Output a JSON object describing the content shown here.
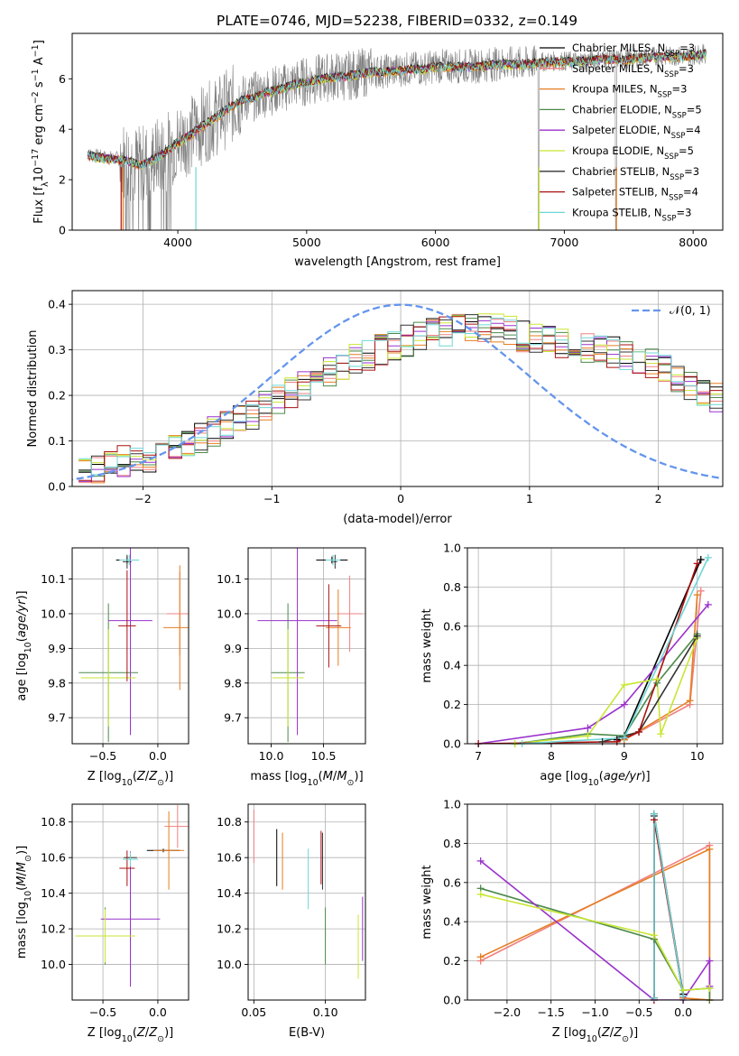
{
  "figure": {
    "title": "PLATE=0746, MJD=52238, FIBERID=0332, z=0.149"
  },
  "colors": {
    "Chabrier MILES": "#000000",
    "Salpeter MILES": "#f08080",
    "Kroupa MILES": "#e67e22",
    "Chabrier ELODIE": "#4c8a4c",
    "Salpeter ELODIE": "#9932cc",
    "Kroupa ELODIE": "#c8e632",
    "Chabrier STELIB": "#333333",
    "Salpeter STELIB": "#aa1111",
    "Kroupa STELIB": "#6fd6d6",
    "data": "#808080",
    "normal": "#6495ed",
    "grid": "#b0b0b0"
  },
  "chart_data": [
    {
      "id": "spectrum",
      "type": "line",
      "xlabel": "wavelength [Angstrom, rest frame]",
      "ylabel": "Flux [f_λ 10^-17 erg cm^-2 s^-1 A^-1]",
      "xlim": [
        3180,
        8230
      ],
      "ylim": [
        0,
        7.8
      ],
      "xticks": [
        4000,
        5000,
        6000,
        7000,
        8000
      ],
      "yticks": [
        0,
        2,
        4,
        6
      ],
      "grid": false,
      "legend_placement": "top-right",
      "legend": [
        {
          "base": "Chabrier MILES, N",
          "sub": "SSP",
          "tail": "=3"
        },
        {
          "base": "Salpeter MILES, N",
          "sub": "SSP",
          "tail": "=3"
        },
        {
          "base": "Kroupa MILES, N",
          "sub": "SSP",
          "tail": "=3"
        },
        {
          "base": "Chabrier ELODIE, N",
          "sub": "SSP",
          "tail": "=5"
        },
        {
          "base": "Salpeter ELODIE, N",
          "sub": "SSP",
          "tail": "=4"
        },
        {
          "base": "Kroupa ELODIE, N",
          "sub": "SSP",
          "tail": "=5"
        },
        {
          "base": "Chabrier STELIB, N",
          "sub": "SSP",
          "tail": "=3"
        },
        {
          "base": "Salpeter STELIB, N",
          "sub": "SSP",
          "tail": "=4"
        },
        {
          "base": "Kroupa STELIB, N",
          "sub": "SSP",
          "tail": "=3"
        }
      ],
      "continuum": {
        "x": [
          3300,
          3400,
          3500,
          3600,
          3700,
          3800,
          3900,
          4000,
          4100,
          4200,
          4300,
          4400,
          4500,
          4600,
          4700,
          4800,
          4900,
          5000,
          5100,
          5200,
          5300,
          5400,
          5500,
          5600,
          5700,
          5800,
          5900,
          6000,
          6100,
          6200,
          6300,
          6400,
          6500,
          6600,
          6700,
          6800,
          6900,
          7000,
          7100,
          7200,
          7300,
          7400,
          7500,
          7600,
          7700,
          7800,
          7900,
          8000,
          8100
        ],
        "y": [
          3.0,
          2.9,
          2.85,
          2.8,
          2.6,
          2.8,
          3.1,
          3.5,
          3.8,
          4.2,
          4.5,
          4.9,
          5.2,
          5.3,
          5.5,
          5.6,
          5.8,
          5.9,
          6.0,
          6.1,
          6.1,
          6.2,
          6.3,
          6.3,
          6.35,
          6.4,
          6.4,
          6.5,
          6.5,
          6.5,
          6.5,
          6.55,
          6.6,
          6.6,
          6.6,
          6.65,
          6.7,
          6.7,
          6.7,
          6.75,
          6.8,
          6.8,
          6.8,
          6.85,
          6.9,
          6.9,
          6.9,
          6.95,
          7.0
        ]
      }
    },
    {
      "id": "residuals",
      "type": "histogram",
      "xlabel": "(data-model)/error",
      "ylabel": "Normed distribution",
      "xlim": [
        -2.55,
        2.5
      ],
      "ylim": [
        0,
        0.43
      ],
      "xticks": [
        -2,
        -1,
        0,
        1,
        2
      ],
      "yticks": [
        0.0,
        0.1,
        0.2,
        0.3,
        0.4
      ],
      "grid": true,
      "legend_placement": "top-right",
      "legend_label": "𝒩(0, 1)",
      "bin_start": -2.5,
      "bin_width": 0.1,
      "base_values": [
        0.035,
        0.04,
        0.05,
        0.055,
        0.06,
        0.065,
        0.075,
        0.085,
        0.095,
        0.105,
        0.12,
        0.13,
        0.145,
        0.16,
        0.175,
        0.19,
        0.205,
        0.22,
        0.235,
        0.25,
        0.265,
        0.28,
        0.29,
        0.3,
        0.31,
        0.32,
        0.33,
        0.335,
        0.34,
        0.345,
        0.35,
        0.35,
        0.345,
        0.34,
        0.33,
        0.325,
        0.32,
        0.315,
        0.31,
        0.305,
        0.3,
        0.295,
        0.29,
        0.28,
        0.27,
        0.255,
        0.24,
        0.225,
        0.21,
        0.195,
        0.18,
        0.165,
        0.15,
        0.135,
        0.12,
        0.11,
        0.1,
        0.09,
        0.08,
        0.075,
        0.07,
        0.065,
        0.06,
        0.055,
        0.05,
        0.045,
        0.04,
        0.035,
        0.03,
        0.03
      ]
    },
    {
      "id": "age_vs_Z",
      "type": "errorbar",
      "xlabel": "Z [log10(Z/Z⊙)]",
      "ylabel": "age [log10(age/yr)]",
      "xlim": [
        -0.78,
        0.28
      ],
      "ylim": [
        9.625,
        10.19
      ],
      "xticks": [
        -0.5,
        0.0
      ],
      "yticks": [
        9.7,
        9.8,
        9.9,
        10.0,
        10.1
      ],
      "grid": true,
      "points": [
        {
          "model": "Chabrier MILES",
          "x": -0.28,
          "xerr": 0.1,
          "y": 10.155,
          "yerr": 0.01
        },
        {
          "model": "Salpeter MILES",
          "x": 0.2,
          "xerr": 0.12,
          "y": 10.0,
          "yerr": 0.12
        },
        {
          "model": "Kroupa MILES",
          "x": 0.2,
          "xerr": 0.15,
          "y": 9.96,
          "yerr": 0.18
        },
        {
          "model": "Chabrier ELODIE",
          "x": -0.45,
          "xerr": 0.27,
          "y": 9.83,
          "yerr": 0.2
        },
        {
          "model": "Salpeter ELODIE",
          "x": -0.25,
          "xerr": 0.2,
          "y": 9.98,
          "yerr": 0.33
        },
        {
          "model": "Kroupa ELODIE",
          "x": -0.45,
          "xerr": 0.25,
          "y": 9.815,
          "yerr": 0.14
        },
        {
          "model": "Chabrier STELIB",
          "x": -0.28,
          "xerr": 0.04,
          "y": 10.15,
          "yerr": 0.02
        },
        {
          "model": "Salpeter STELIB",
          "x": -0.28,
          "xerr": 0.08,
          "y": 9.965,
          "yerr": 0.16
        },
        {
          "model": "Kroupa STELIB",
          "x": -0.26,
          "xerr": 0.09,
          "y": 10.155,
          "yerr": 0.015
        }
      ]
    },
    {
      "id": "age_vs_mass",
      "type": "errorbar",
      "xlabel": "mass [log10(M/M⊙)]",
      "ylabel": "",
      "xlim": [
        9.78,
        10.9
      ],
      "ylim": [
        9.625,
        10.19
      ],
      "xticks": [
        10.0,
        10.5
      ],
      "yticks": [
        9.7,
        9.8,
        9.9,
        10.0,
        10.1
      ],
      "grid": true,
      "points": [
        {
          "model": "Chabrier MILES",
          "x": 10.58,
          "xerr": 0.15,
          "y": 10.155,
          "yerr": 0.01
        },
        {
          "model": "Salpeter MILES",
          "x": 10.75,
          "xerr": 0.12,
          "y": 10.0,
          "yerr": 0.11
        },
        {
          "model": "Kroupa MILES",
          "x": 10.64,
          "xerr": 0.12,
          "y": 9.96,
          "yerr": 0.11
        },
        {
          "model": "Chabrier ELODIE",
          "x": 10.16,
          "xerr": 0.16,
          "y": 9.83,
          "yerr": 0.2
        },
        {
          "model": "Salpeter ELODIE",
          "x": 10.25,
          "xerr": 0.38,
          "y": 9.98,
          "yerr": 0.33
        },
        {
          "model": "Kroupa ELODIE",
          "x": 10.16,
          "xerr": 0.15,
          "y": 9.815,
          "yerr": 0.14
        },
        {
          "model": "Chabrier STELIB",
          "x": 10.61,
          "xerr": 0.02,
          "y": 10.15,
          "yerr": 0.02
        },
        {
          "model": "Salpeter STELIB",
          "x": 10.55,
          "xerr": 0.12,
          "y": 9.965,
          "yerr": 0.12
        },
        {
          "model": "Kroupa STELIB",
          "x": 10.59,
          "xerr": 0.07,
          "y": 10.155,
          "yerr": 0.015
        }
      ]
    },
    {
      "id": "mass_weight_vs_age",
      "type": "line",
      "xlabel": "age [log10(age/yr)]",
      "ylabel": "mass weight",
      "xlim": [
        6.85,
        10.35
      ],
      "ylim": [
        0,
        1.0
      ],
      "xticks": [
        7,
        8,
        9,
        10
      ],
      "yticks": [
        0.0,
        0.2,
        0.4,
        0.6,
        0.8,
        1.0
      ],
      "grid": true,
      "series": [
        {
          "model": "Chabrier MILES",
          "x": [
            8.9,
            9.0,
            10.05
          ],
          "y": [
            0.02,
            0.04,
            0.94
          ]
        },
        {
          "model": "Salpeter MILES",
          "x": [
            9.0,
            9.9,
            10.05
          ],
          "y": [
            0.02,
            0.2,
            0.78
          ]
        },
        {
          "model": "Kroupa MILES",
          "x": [
            9.0,
            9.9,
            10.0
          ],
          "y": [
            0.02,
            0.22,
            0.76
          ]
        },
        {
          "model": "Chabrier ELODIE",
          "x": [
            7.5,
            8.5,
            9.0,
            9.45,
            10.0
          ],
          "y": [
            0.0,
            0.05,
            0.04,
            0.31,
            0.56
          ]
        },
        {
          "model": "Salpeter ELODIE",
          "x": [
            7.0,
            8.5,
            9.0,
            10.15
          ],
          "y": [
            0.0,
            0.08,
            0.2,
            0.71
          ]
        },
        {
          "model": "Kroupa ELODIE",
          "x": [
            7.5,
            8.5,
            9.0,
            9.45,
            9.5,
            10.0
          ],
          "y": [
            0.0,
            0.04,
            0.3,
            0.33,
            0.05,
            0.54
          ]
        },
        {
          "model": "Chabrier STELIB",
          "x": [
            8.7,
            9.2,
            10.0
          ],
          "y": [
            0.01,
            0.06,
            0.55
          ]
        },
        {
          "model": "Salpeter STELIB",
          "x": [
            7.0,
            8.9,
            9.2,
            10.0
          ],
          "y": [
            0.0,
            0.01,
            0.06,
            0.92
          ]
        },
        {
          "model": "Kroupa STELIB",
          "x": [
            7.6,
            9.0,
            10.15
          ],
          "y": [
            0.0,
            0.03,
            0.95
          ]
        }
      ]
    },
    {
      "id": "mass_vs_Z",
      "type": "errorbar",
      "xlabel": "Z [log10(Z/Z⊙)]",
      "ylabel": "mass [log10(M/M⊙)]",
      "xlim": [
        -0.78,
        0.28
      ],
      "ylim": [
        9.8,
        10.9
      ],
      "xticks": [
        -0.5,
        0.0
      ],
      "yticks": [
        10.0,
        10.2,
        10.4,
        10.6,
        10.8
      ],
      "grid": true,
      "points": [
        {
          "model": "Chabrier MILES",
          "x": 0.05,
          "xerr": 0.15,
          "y": 10.64,
          "yerr": 0.01
        },
        {
          "model": "Salpeter MILES",
          "x": 0.18,
          "xerr": 0.12,
          "y": 10.775,
          "yerr": 0.12
        },
        {
          "model": "Kroupa MILES",
          "x": 0.1,
          "xerr": 0.14,
          "y": 10.64,
          "yerr": 0.22
        },
        {
          "model": "Chabrier ELODIE",
          "x": -0.48,
          "xerr": 0.27,
          "y": 10.16,
          "yerr": 0.16
        },
        {
          "model": "Salpeter ELODIE",
          "x": -0.25,
          "xerr": 0.27,
          "y": 10.255,
          "yerr": 0.38
        },
        {
          "model": "Kroupa ELODIE",
          "x": -0.48,
          "xerr": 0.27,
          "y": 10.16,
          "yerr": 0.15
        },
        {
          "model": "Chabrier STELIB",
          "x": -0.25,
          "xerr": 0.06,
          "y": 10.6,
          "yerr": 0.02
        },
        {
          "model": "Salpeter STELIB",
          "x": -0.28,
          "xerr": 0.07,
          "y": 10.54,
          "yerr": 0.1
        },
        {
          "model": "Kroupa STELIB",
          "x": -0.25,
          "xerr": 0.07,
          "y": 10.59,
          "yerr": 0.04
        }
      ]
    },
    {
      "id": "mass_vs_EBV",
      "type": "errorbar",
      "xlabel": "E(B-V)",
      "ylabel": "",
      "xlim": [
        0.046,
        0.128
      ],
      "ylim": [
        9.8,
        10.9
      ],
      "xticks": [
        0.05,
        0.1
      ],
      "yticks": [
        10.0,
        10.2,
        10.4,
        10.6,
        10.8
      ],
      "grid": true,
      "points": [
        {
          "model": "Chabrier MILES",
          "x": 0.066,
          "xerr": 0.0,
          "y": 10.6,
          "yerr": 0.16
        },
        {
          "model": "Salpeter MILES",
          "x": 0.05,
          "xerr": 0.0,
          "y": 10.72,
          "yerr": 0.15
        },
        {
          "model": "Kroupa MILES",
          "x": 0.07,
          "xerr": 0.0,
          "y": 10.58,
          "yerr": 0.16
        },
        {
          "model": "Chabrier ELODIE",
          "x": 0.1,
          "xerr": 0.0,
          "y": 10.16,
          "yerr": 0.16
        },
        {
          "model": "Salpeter ELODIE",
          "x": 0.126,
          "xerr": 0.0,
          "y": 10.2,
          "yerr": 0.18
        },
        {
          "model": "Kroupa ELODIE",
          "x": 0.123,
          "xerr": 0.0,
          "y": 10.1,
          "yerr": 0.18
        },
        {
          "model": "Chabrier STELIB",
          "x": 0.098,
          "xerr": 0.0,
          "y": 10.58,
          "yerr": 0.16
        },
        {
          "model": "Salpeter STELIB",
          "x": 0.097,
          "xerr": 0.0,
          "y": 10.6,
          "yerr": 0.15
        },
        {
          "model": "Kroupa STELIB",
          "x": 0.088,
          "xerr": 0.0,
          "y": 10.48,
          "yerr": 0.17
        }
      ]
    },
    {
      "id": "mass_weight_vs_Z",
      "type": "line",
      "xlabel": "Z [log10(Z/Z⊙)]",
      "ylabel": "mass weight",
      "xlim": [
        -2.45,
        0.45
      ],
      "ylim": [
        0,
        1.0
      ],
      "xticks": [
        -2.0,
        -1.5,
        -1.0,
        -0.5,
        0.0
      ],
      "yticks": [
        0.0,
        0.2,
        0.4,
        0.6,
        0.8,
        1.0
      ],
      "grid": true,
      "series": [
        {
          "model": "Chabrier MILES",
          "x": [
            -0.33,
            -0.33,
            0.0
          ],
          "y": [
            0.01,
            0.95,
            0.03
          ]
        },
        {
          "model": "Salpeter MILES",
          "x": [
            -2.3,
            0.3,
            0.3,
            0.0
          ],
          "y": [
            0.2,
            0.79,
            0.0,
            0.01
          ]
        },
        {
          "model": "Kroupa MILES",
          "x": [
            -2.3,
            0.3,
            0.3,
            0.0
          ],
          "y": [
            0.22,
            0.77,
            0.0,
            0.01
          ]
        },
        {
          "model": "Chabrier ELODIE",
          "x": [
            -2.3,
            -0.33,
            0.0,
            0.3,
            0.3
          ],
          "y": [
            0.57,
            0.31,
            0.05,
            0.06,
            0.0
          ]
        },
        {
          "model": "Salpeter ELODIE",
          "x": [
            -2.3,
            -0.33,
            0.0,
            0.3,
            0.3
          ],
          "y": [
            0.71,
            0.0,
            0.0,
            0.2,
            0.07
          ]
        },
        {
          "model": "Kroupa ELODIE",
          "x": [
            -2.3,
            -0.33,
            0.0,
            0.3
          ],
          "y": [
            0.54,
            0.33,
            0.05,
            0.06
          ]
        },
        {
          "model": "Chabrier STELIB",
          "x": [
            -0.33,
            -0.33,
            0.0
          ],
          "y": [
            0.01,
            0.94,
            0.02
          ]
        },
        {
          "model": "Salpeter STELIB",
          "x": [
            -0.33,
            -0.33,
            0.0
          ],
          "y": [
            0.0,
            0.92,
            0.02
          ]
        },
        {
          "model": "Kroupa STELIB",
          "x": [
            -0.33,
            -0.33,
            0.0
          ],
          "y": [
            0.01,
            0.95,
            0.02
          ]
        }
      ]
    }
  ]
}
